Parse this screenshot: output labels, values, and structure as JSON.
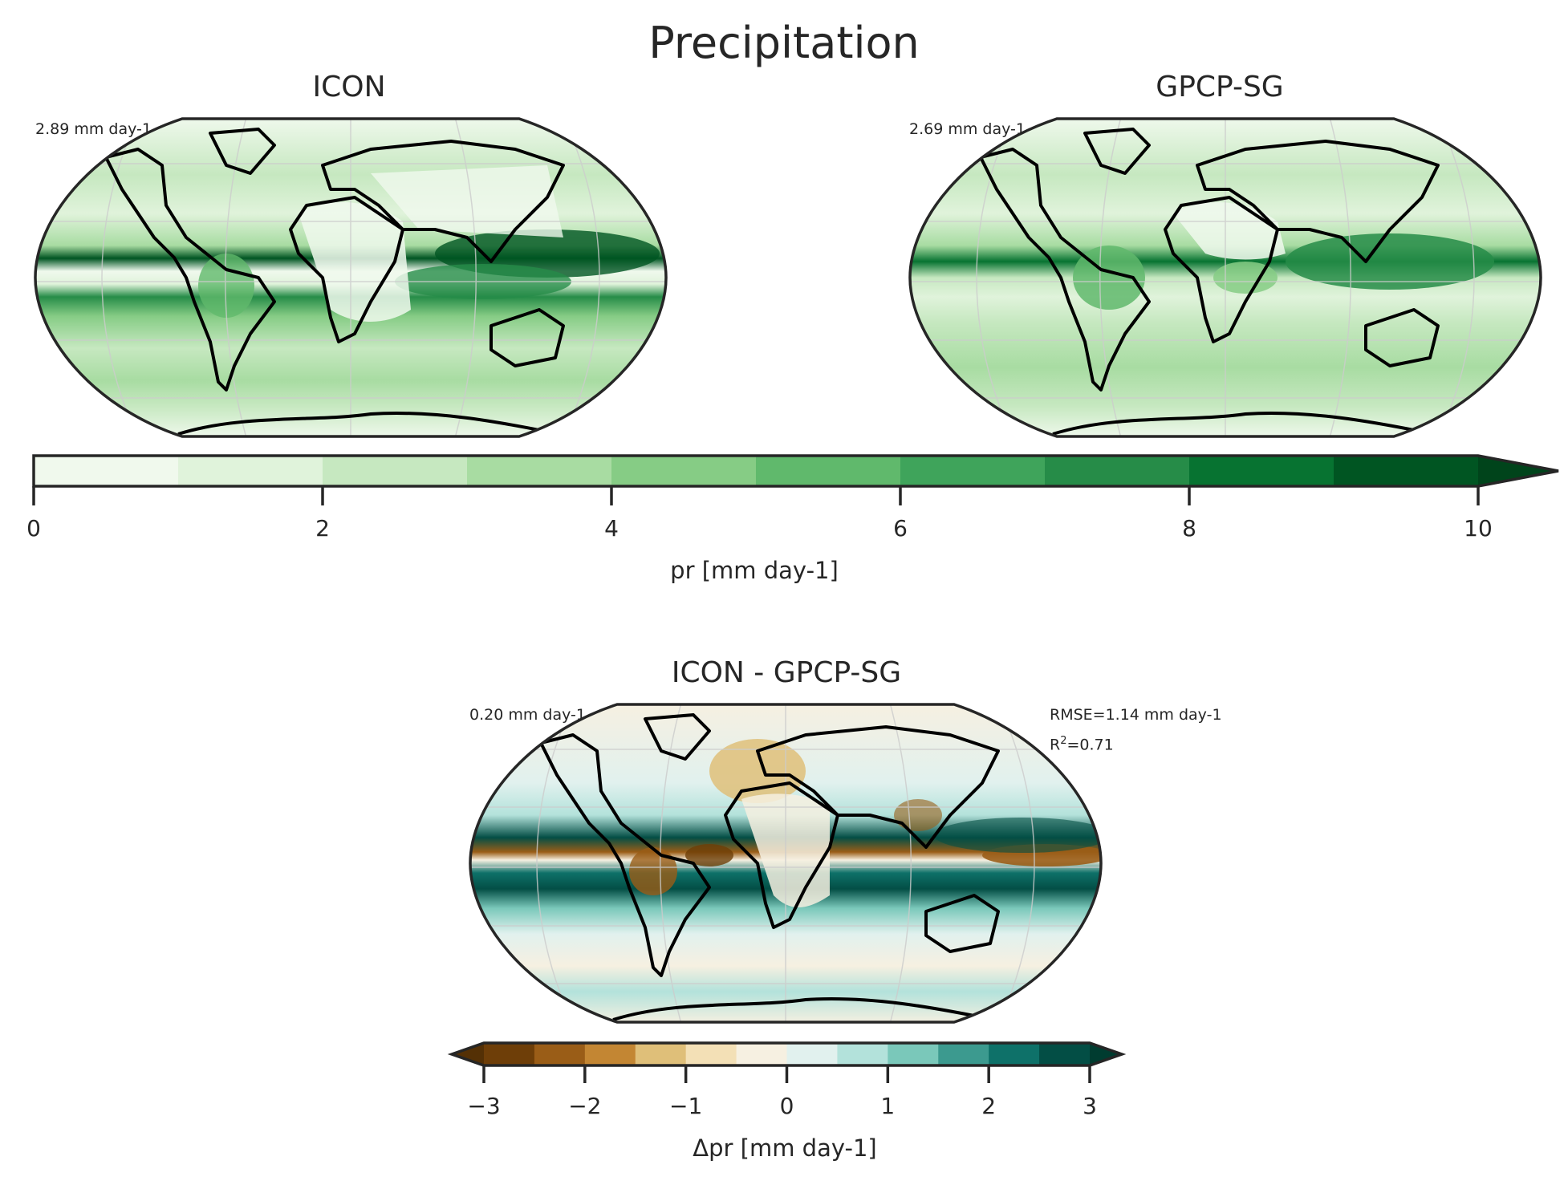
{
  "figure": {
    "title": "Precipitation",
    "panels": [
      {
        "id": "icon",
        "title": "ICON",
        "mean_label": "2.89 mm day-1"
      },
      {
        "id": "gpcp",
        "title": "GPCP-SG",
        "mean_label": "2.69 mm day-1"
      },
      {
        "id": "diff",
        "title": "ICON - GPCP-SG",
        "mean_label": "0.20 mm day-1",
        "rmse_label": "RMSE=1.14 mm day-1",
        "r2_prefix": "R",
        "r2_sup": "2",
        "r2_value": "=0.71"
      }
    ],
    "colorbar_top": {
      "label": "pr [mm day-1]",
      "ticks": [
        "0",
        "2",
        "4",
        "6",
        "8",
        "10"
      ],
      "colors": [
        "#f0f9ed",
        "#e0f3db",
        "#c6e8c0",
        "#a8dca2",
        "#86cc85",
        "#60b96c",
        "#3fa45b",
        "#268c48",
        "#077331",
        "#005522"
      ],
      "extend_color": "#00441b",
      "extend": "max"
    },
    "colorbar_bottom": {
      "label": "Δpr [mm day-1]",
      "ticks": [
        "−3",
        "−2",
        "−1",
        "0",
        "1",
        "2",
        "3"
      ],
      "colors": [
        "#6e3e08",
        "#9a5d17",
        "#c38633",
        "#dfbf79",
        "#f3e0b6",
        "#f6f0e1",
        "#e1f1ee",
        "#b3e2db",
        "#7ac8ba",
        "#3c9a8f",
        "#0e7169",
        "#034e45"
      ],
      "under_color": "#543005",
      "over_color": "#003c30",
      "extend": "both"
    }
  },
  "chart_data": [
    {
      "type": "heatmap",
      "title": "ICON",
      "subtitle": "Precipitation",
      "projection": "Robinson (global map)",
      "annotations": [
        "2.89 mm day-1"
      ],
      "colorbar": {
        "label": "pr [mm day-1]",
        "range": [
          0,
          10
        ],
        "levels": [
          0,
          1,
          2,
          3,
          4,
          5,
          6,
          7,
          8,
          9,
          10
        ],
        "extend": "max",
        "cmap": "Greens"
      },
      "description": "Strong double ITCZ bands in the Pacific (>9 mm/day), heavy precipitation over Maritime Continent/Indian Ocean, mid-latitude storm tracks ~3-5 mm/day, dry subtropics and deserts <1 mm/day."
    },
    {
      "type": "heatmap",
      "title": "GPCP-SG",
      "subtitle": "Precipitation",
      "projection": "Robinson (global map)",
      "annotations": [
        "2.69 mm day-1"
      ],
      "colorbar": {
        "label": "pr [mm day-1]",
        "range": [
          0,
          10
        ],
        "levels": [
          0,
          1,
          2,
          3,
          4,
          5,
          6,
          7,
          8,
          9,
          10
        ],
        "extend": "max",
        "cmap": "Greens"
      },
      "description": "Observed ITCZ, maximum over Maritime Continent and West Pacific (>8 mm/day), Amazon 5-7 mm/day, dry subtropical oceans and deserts."
    },
    {
      "type": "heatmap",
      "title": "ICON - GPCP-SG",
      "projection": "Robinson (global map)",
      "annotations": [
        "0.20 mm day-1",
        "RMSE=1.14 mm day-1",
        "R²=0.71"
      ],
      "stats": {
        "mean_bias": 0.2,
        "rmse": 1.14,
        "r2": 0.71,
        "units": "mm day-1"
      },
      "colorbar": {
        "label": "Δpr [mm day-1]",
        "range": [
          -3,
          3
        ],
        "levels": [
          -3,
          -2.5,
          -2,
          -1.5,
          -1,
          -0.5,
          0,
          0.5,
          1,
          1.5,
          2,
          2.5,
          3
        ],
        "extend": "both",
        "cmap": "BrBG"
      },
      "description": "Dry bias along equatorial Pacific and Amazon/N. South America (< -3), wet bias in double ITCZ bands south of equator and West Pacific (> +3), mild dry biases over Eurasia."
    }
  ]
}
